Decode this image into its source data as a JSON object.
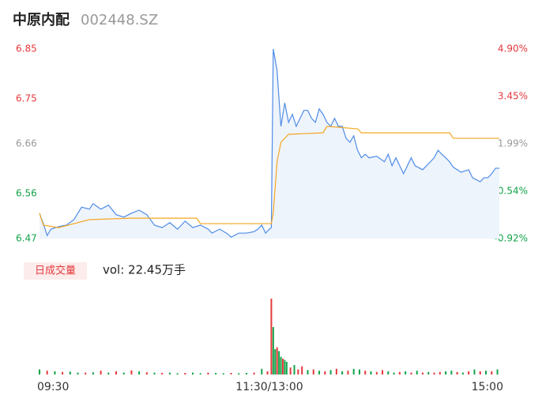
{
  "header": {
    "name": "中原内配",
    "code": "002448.SZ"
  },
  "chart_data": [
    {
      "type": "line",
      "xlim": [
        0,
        240
      ],
      "xticks": [
        {
          "value": 0,
          "label": "09:30"
        },
        {
          "value": 120,
          "label": "11:30/13:00"
        },
        {
          "value": 240,
          "label": "15:00"
        }
      ],
      "ylim": [
        6.47,
        6.85
      ],
      "yticks": [
        6.85,
        6.75,
        6.66,
        6.56,
        6.47
      ],
      "y2lim": [
        -0.92,
        4.9
      ],
      "y2ticks": [
        {
          "value": 4.9,
          "label": "4.90%"
        },
        {
          "value": 3.45,
          "label": "3.45%"
        },
        {
          "value": 1.99,
          "label": "1.99%"
        },
        {
          "value": 0.54,
          "label": "0.54%"
        },
        {
          "value": -0.92,
          "label": "-0.92%"
        }
      ],
      "up_color": "#e4393c",
      "flat_color": "#999999",
      "down_color": "#13a34a",
      "area_color": "#eef4fc",
      "series": [
        {
          "color": "#4f8ce6",
          "x": [
            0,
            2,
            4,
            6,
            10,
            14,
            18,
            20,
            22,
            26,
            28,
            32,
            36,
            40,
            44,
            48,
            52,
            56,
            60,
            64,
            68,
            72,
            76,
            80,
            84,
            88,
            90,
            94,
            98,
            100,
            104,
            108,
            112,
            114,
            116,
            118,
            120,
            121,
            122,
            124,
            126,
            128,
            130,
            132,
            134,
            136,
            138,
            140,
            142,
            144,
            146,
            148,
            150,
            152,
            154,
            156,
            158,
            160,
            162,
            164,
            166,
            168,
            170,
            172,
            176,
            180,
            182,
            184,
            186,
            190,
            194,
            196,
            200,
            204,
            206,
            208,
            210,
            212,
            214,
            216,
            220,
            224,
            226,
            230,
            232,
            234,
            236,
            238,
            240
          ],
          "values": [
            6.521,
            6.5,
            6.476,
            6.489,
            6.494,
            6.497,
            6.508,
            6.521,
            6.533,
            6.529,
            6.54,
            6.529,
            6.537,
            6.518,
            6.513,
            6.521,
            6.527,
            6.518,
            6.497,
            6.492,
            6.502,
            6.489,
            6.505,
            6.492,
            6.497,
            6.489,
            6.481,
            6.489,
            6.48,
            6.473,
            6.481,
            6.481,
            6.484,
            6.489,
            6.497,
            6.481,
            6.489,
            6.492,
            6.85,
            6.806,
            6.695,
            6.742,
            6.703,
            6.719,
            6.695,
            6.711,
            6.727,
            6.727,
            6.711,
            6.703,
            6.73,
            6.719,
            6.703,
            6.695,
            6.711,
            6.695,
            6.695,
            6.671,
            6.663,
            6.676,
            6.647,
            6.632,
            6.639,
            6.632,
            6.635,
            6.624,
            6.639,
            6.616,
            6.632,
            6.6,
            6.632,
            6.616,
            6.608,
            6.624,
            6.632,
            6.647,
            6.639,
            6.632,
            6.624,
            6.613,
            6.603,
            6.608,
            6.592,
            6.584,
            6.592,
            6.592,
            6.6,
            6.611,
            6.611
          ]
        },
        {
          "color": "#f5a623",
          "x": [
            0,
            2,
            10,
            18,
            26,
            48,
            82,
            84,
            121,
            122,
            124,
            126,
            130,
            148,
            150,
            166,
            168,
            214,
            216,
            240
          ],
          "values": [
            6.521,
            6.497,
            6.492,
            6.5,
            6.508,
            6.511,
            6.511,
            6.5,
            6.5,
            6.521,
            6.624,
            6.663,
            6.679,
            6.682,
            6.695,
            6.69,
            6.682,
            6.682,
            6.671,
            6.671
          ]
        }
      ]
    },
    {
      "type": "bar",
      "label": "日成交量",
      "annotation": "vol: 22.45万手",
      "ylim": [
        0,
        12000
      ],
      "x": [
        0,
        4,
        8,
        12,
        16,
        20,
        24,
        28,
        32,
        36,
        40,
        44,
        48,
        52,
        56,
        60,
        64,
        68,
        72,
        76,
        80,
        84,
        88,
        92,
        96,
        100,
        104,
        108,
        112,
        116,
        119,
        121,
        122,
        123,
        124,
        125,
        126,
        127,
        128,
        129,
        131,
        133,
        135,
        137,
        140,
        143,
        146,
        149,
        152,
        155,
        158,
        161,
        164,
        167,
        170,
        173,
        176,
        179,
        182,
        185,
        188,
        191,
        194,
        197,
        200,
        203,
        206,
        209,
        212,
        215,
        218,
        221,
        224,
        227,
        230,
        233,
        236,
        239
      ],
      "values": [
        800,
        600,
        500,
        400,
        450,
        300,
        300,
        350,
        600,
        300,
        500,
        300,
        650,
        500,
        350,
        300,
        250,
        300,
        200,
        250,
        300,
        200,
        300,
        250,
        200,
        250,
        200,
        250,
        300,
        900,
        500,
        12000,
        7500,
        4000,
        4300,
        3700,
        2800,
        2500,
        2300,
        2000,
        1100,
        1500,
        800,
        1300,
        700,
        800,
        600,
        500,
        700,
        900,
        500,
        600,
        900,
        800,
        600,
        500,
        400,
        700,
        500,
        300,
        400,
        500,
        300,
        600,
        300,
        400,
        300,
        400,
        500,
        600,
        400,
        300,
        500,
        800,
        500,
        600,
        500,
        800
      ],
      "colors": [
        "#13a34a",
        "#e4393c",
        "#13a34a",
        "#e4393c",
        "#13a34a",
        "#13a34a",
        "#e4393c",
        "#13a34a",
        "#e4393c",
        "#13a34a",
        "#e4393c",
        "#13a34a",
        "#e4393c",
        "#13a34a",
        "#e4393c",
        "#13a34a",
        "#e4393c",
        "#13a34a",
        "#13a34a",
        "#e4393c",
        "#13a34a",
        "#13a34a",
        "#e4393c",
        "#13a34a",
        "#13a34a",
        "#e4393c",
        "#13a34a",
        "#13a34a",
        "#e4393c",
        "#13a34a",
        "#e4393c",
        "#e4393c",
        "#13a34a",
        "#13a34a",
        "#e4393c",
        "#13a34a",
        "#13a34a",
        "#e4393c",
        "#13a34a",
        "#13a34a",
        "#e4393c",
        "#13a34a",
        "#e4393c",
        "#e4393c",
        "#13a34a",
        "#e4393c",
        "#13a34a",
        "#e4393c",
        "#13a34a",
        "#e4393c",
        "#13a34a",
        "#e4393c",
        "#13a34a",
        "#13a34a",
        "#e4393c",
        "#13a34a",
        "#e4393c",
        "#e4393c",
        "#13a34a",
        "#13a34a",
        "#e4393c",
        "#13a34a",
        "#e4393c",
        "#13a34a",
        "#e4393c",
        "#13a34a",
        "#e4393c",
        "#e4393c",
        "#13a34a",
        "#13a34a",
        "#e4393c",
        "#13a34a",
        "#e4393c",
        "#13a34a",
        "#e4393c",
        "#13a34a",
        "#e4393c",
        "#13a34a"
      ]
    }
  ]
}
